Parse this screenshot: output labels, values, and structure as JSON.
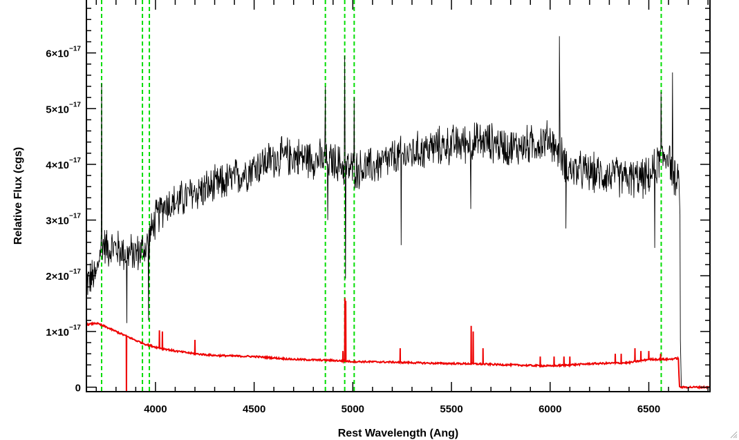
{
  "chart_data": {
    "type": "line",
    "xlabel": "Rest Wavelength (Ang)",
    "ylabel": "Relative Flux (cgs)",
    "xlim": [
      3650,
      6810
    ],
    "ylim": [
      -8e-19,
      6.95e-17
    ],
    "grid": false,
    "x_ticks": [
      4000,
      4500,
      5000,
      5500,
      6000,
      6500
    ],
    "x_tick_labels": [
      "4000",
      "4500",
      "5000",
      "5500",
      "6000",
      "6500"
    ],
    "y_ticks": [
      0,
      1e-17,
      2e-17,
      3e-17,
      4e-17,
      5e-17,
      6e-17
    ],
    "y_tick_labels": [
      {
        "coef": "0",
        "exp": ""
      },
      {
        "coef": "1×10",
        "exp": "−17"
      },
      {
        "coef": "2×10",
        "exp": "−17"
      },
      {
        "coef": "3×10",
        "exp": "−17"
      },
      {
        "coef": "4×10",
        "exp": "−17"
      },
      {
        "coef": "5×10",
        "exp": "−17"
      },
      {
        "coef": "6×10",
        "exp": "−17"
      }
    ],
    "vertical_lines": {
      "color": "#00dd00",
      "style": "dashed",
      "x": [
        3727,
        3934,
        3969,
        4861,
        4959,
        5007,
        6563
      ]
    },
    "series": [
      {
        "color": "#000000",
        "style": "noisy",
        "noise": 3.8e-18,
        "points": [
          [
            3650,
            1.9e-17
          ],
          [
            3700,
            2e-17
          ],
          [
            3727,
            2.6e-17
          ],
          [
            3760,
            2.5e-17
          ],
          [
            3800,
            2.5e-17
          ],
          [
            3850,
            2.4e-17
          ],
          [
            3900,
            2.4e-17
          ],
          [
            3950,
            2.5e-17
          ],
          [
            4000,
            3e-17
          ],
          [
            4050,
            3.3e-17
          ],
          [
            4100,
            3.3e-17
          ],
          [
            4200,
            3.5e-17
          ],
          [
            4300,
            3.6e-17
          ],
          [
            4400,
            3.75e-17
          ],
          [
            4500,
            3.95e-17
          ],
          [
            4600,
            4.1e-17
          ],
          [
            4700,
            4.15e-17
          ],
          [
            4800,
            4.1e-17
          ],
          [
            4900,
            4.05e-17
          ],
          [
            5000,
            3.9e-17
          ],
          [
            5100,
            3.95e-17
          ],
          [
            5200,
            4.1e-17
          ],
          [
            5300,
            4.2e-17
          ],
          [
            5400,
            4.3e-17
          ],
          [
            5500,
            4.35e-17
          ],
          [
            5600,
            4.4e-17
          ],
          [
            5700,
            4.4e-17
          ],
          [
            5800,
            4.3e-17
          ],
          [
            5900,
            4.35e-17
          ],
          [
            6000,
            4.45e-17
          ],
          [
            6050,
            4.2e-17
          ],
          [
            6100,
            3.9e-17
          ],
          [
            6200,
            3.85e-17
          ],
          [
            6300,
            3.8e-17
          ],
          [
            6400,
            3.75e-17
          ],
          [
            6500,
            3.75e-17
          ],
          [
            6560,
            4.1e-17
          ],
          [
            6600,
            4.2e-17
          ],
          [
            6640,
            3.6e-17
          ],
          [
            6655,
            3.7e-17
          ]
        ],
        "spikes": [
          [
            3727,
            5.45e-17
          ],
          [
            3855,
            1.15e-17
          ],
          [
            3965,
            1.2e-17
          ],
          [
            4861,
            5.4e-17
          ],
          [
            4873,
            3e-17
          ],
          [
            4959,
            5.95e-17
          ],
          [
            4963,
            1.95e-17
          ],
          [
            5007,
            5.2e-17
          ],
          [
            5245,
            2.55e-17
          ],
          [
            5598,
            3.2e-17
          ],
          [
            6030,
            4.3e-17
          ],
          [
            6047,
            6.3e-17
          ],
          [
            6080,
            2.85e-17
          ],
          [
            6530,
            2.5e-17
          ],
          [
            6562,
            5.3e-17
          ],
          [
            6620,
            5.65e-17
          ]
        ],
        "tail": [
          [
            6658,
            3.1e-17
          ],
          [
            6660,
            8.5e-18
          ],
          [
            6665,
            0.0
          ]
        ]
      },
      {
        "color": "#ee0000",
        "style": "smooth",
        "points": [
          [
            3650,
            1.12e-17
          ],
          [
            3700,
            1.15e-17
          ],
          [
            3750,
            1.08e-17
          ],
          [
            3800,
            1e-17
          ],
          [
            3850,
            9.2e-18
          ],
          [
            3900,
            8.4e-18
          ],
          [
            3950,
            7.7e-18
          ],
          [
            4000,
            7.2e-18
          ],
          [
            4100,
            6.5e-18
          ],
          [
            4200,
            6e-18
          ],
          [
            4300,
            5.7e-18
          ],
          [
            4500,
            5.5e-18
          ],
          [
            4700,
            5e-18
          ],
          [
            4900,
            4.8e-18
          ],
          [
            5000,
            4.6e-18
          ],
          [
            5200,
            4.5e-18
          ],
          [
            5400,
            4.3e-18
          ],
          [
            5600,
            4.2e-18
          ],
          [
            5800,
            4e-18
          ],
          [
            6000,
            3.8e-18
          ],
          [
            6200,
            4.2e-18
          ],
          [
            6400,
            4.4e-18
          ],
          [
            6500,
            5e-18
          ],
          [
            6600,
            5e-18
          ],
          [
            6650,
            5.2e-18
          ],
          [
            6655,
            0.0
          ],
          [
            6810,
            0.0
          ]
        ],
        "spikes": [
          [
            3853,
            -1e-18
          ],
          [
            4020,
            1.02e-17
          ],
          [
            4035,
            1e-17
          ],
          [
            4200,
            8.5e-18
          ],
          [
            4950,
            6.5e-18
          ],
          [
            4960,
            1.6e-17
          ],
          [
            4964,
            1.55e-17
          ],
          [
            5240,
            7e-18
          ],
          [
            5600,
            1.1e-17
          ],
          [
            5610,
            1e-17
          ],
          [
            5660,
            7e-18
          ],
          [
            5950,
            5.5e-18
          ],
          [
            6020,
            5.5e-18
          ],
          [
            6070,
            5.5e-18
          ],
          [
            6100,
            5.5e-18
          ],
          [
            6330,
            6e-18
          ],
          [
            6360,
            6e-18
          ],
          [
            6430,
            7e-18
          ],
          [
            6460,
            6.5e-18
          ],
          [
            6500,
            6.5e-18
          ],
          [
            6560,
            6e-18
          ]
        ]
      }
    ]
  }
}
